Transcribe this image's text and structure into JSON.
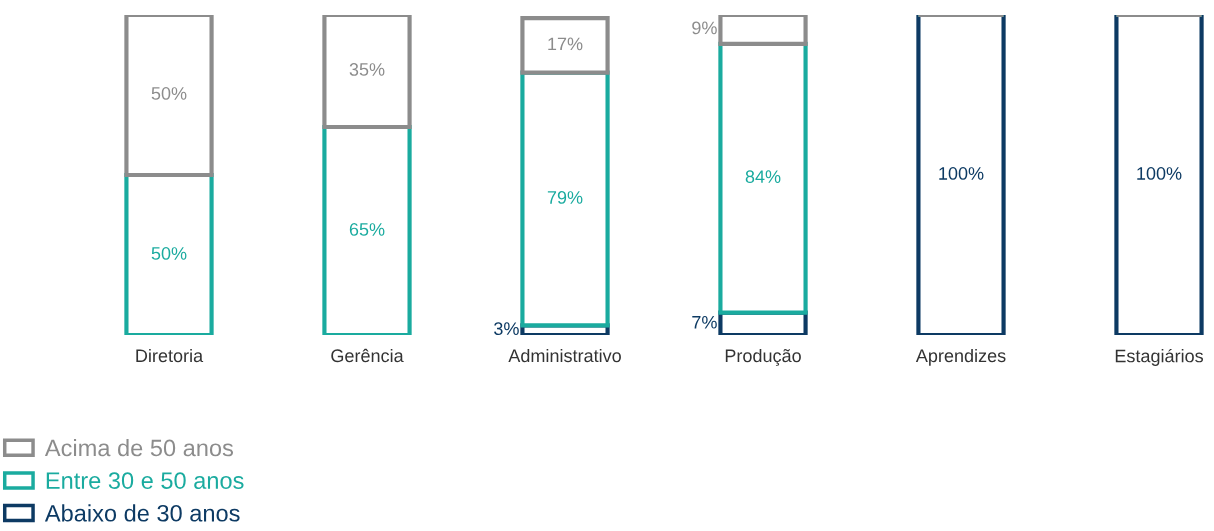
{
  "chart_data": {
    "type": "bar",
    "stacked": true,
    "legend": "bottom left",
    "tick_labels": "x",
    "categories": [
      "Diretoria",
      "Gerência",
      "Administrativo",
      "Produção",
      "Aprendizes",
      "Estagiários"
    ],
    "series": [
      {
        "name": "Abaixo de 30 anos",
        "color": "#0d3a63",
        "values": [
          null,
          null,
          3,
          7,
          100,
          100
        ],
        "value_labels": [
          null,
          null,
          "3%",
          "7%",
          "100%",
          "100%"
        ]
      },
      {
        "name": "Entre 30 e 50 anos",
        "color": "#1aab9f",
        "values": [
          50,
          65,
          79,
          84,
          null,
          null
        ],
        "value_labels": [
          "50%",
          "65%",
          "79%",
          "84%",
          null,
          null
        ]
      },
      {
        "name": "Acima de 50 anos",
        "color": "#8c8c8c",
        "values": [
          50,
          35,
          17,
          9,
          null,
          null
        ],
        "value_labels": [
          "50%",
          "35%",
          "17%",
          "9%",
          null,
          null
        ]
      }
    ]
  }
}
